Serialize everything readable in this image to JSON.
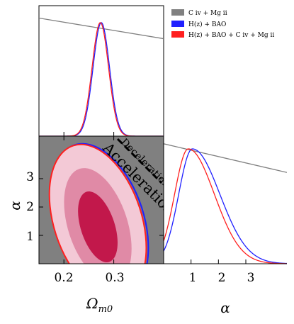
{
  "chart_data": {
    "type": "corner",
    "parameters": [
      "Ωm0",
      "α"
    ],
    "x_labels": {
      "omega": "Ω",
      "omega_sub": "m0",
      "alpha": "α"
    },
    "omega_axis": {
      "range": [
        0.15,
        0.4
      ],
      "ticks": [
        0.2,
        0.3
      ],
      "tick_labels": [
        "0.2",
        "0.3"
      ]
    },
    "alpha_axis": {
      "range": [
        0,
        4.5
      ],
      "ticks": [
        1,
        2,
        3
      ],
      "tick_labels": [
        "1",
        "2",
        "3"
      ]
    },
    "legend": {
      "entries": [
        {
          "label": "C iv + Mg ii",
          "color": "#808080"
        },
        {
          "label": "H(z) + BAO",
          "color": "#1f1fff"
        },
        {
          "label": "H(z) + BAO + C iv + Mg ii",
          "color": "#ff1f1f"
        }
      ]
    },
    "series": [
      {
        "name": "C iv + Mg ii",
        "color": "#808080",
        "omega_posterior": {
          "x": [
            0.15,
            0.4
          ],
          "y": [
            0.905,
            0.747
          ]
        },
        "alpha_posterior": {
          "x": [
            0.0,
            4.5
          ],
          "y": [
            0.94,
            0.715
          ]
        }
      },
      {
        "name": "H(z) + BAO",
        "color": "#1f1fff",
        "omega_posterior": {
          "mean": 0.275,
          "sigma": 0.0165
        },
        "alpha_posterior": {
          "peak": 1.05,
          "sigma_left": 0.5,
          "sigma_right": 1.0
        }
      },
      {
        "name": "H(z) + BAO + C iv + Mg ii",
        "color": "#ff1f1f",
        "omega_posterior": {
          "mean": 0.273,
          "sigma": 0.0165
        },
        "alpha_posterior": {
          "peak": 0.9,
          "sigma_left": 0.5,
          "sigma_right": 0.95
        }
      }
    ],
    "joint_contours": {
      "center": [
        0.268,
        1.3
      ],
      "levels": [
        "2σ",
        "1σ",
        "0.5σ"
      ],
      "colors": [
        "#f3c9d6",
        "#e08aa6",
        "#c2184b"
      ]
    },
    "region_labels": {
      "deceleration": "Deceleration",
      "acceleration": "Acceleration"
    }
  }
}
